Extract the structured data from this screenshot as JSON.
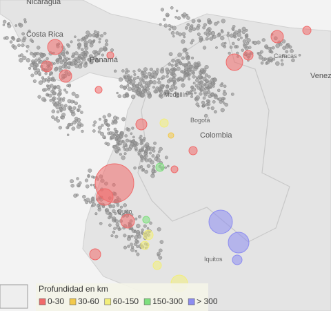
{
  "map": {
    "places": [
      {
        "label": "Nicaragua",
        "kind": "country"
      },
      {
        "label": "Costa Rica",
        "kind": "country"
      },
      {
        "label": "Panamá",
        "kind": "country"
      },
      {
        "label": "Caracas",
        "kind": "city"
      },
      {
        "label": "Venez",
        "kind": "country"
      },
      {
        "label": "Medellín",
        "kind": "city"
      },
      {
        "label": "Bogotá",
        "kind": "city"
      },
      {
        "label": "Colombia",
        "kind": "country"
      },
      {
        "label": "Quito",
        "kind": "city"
      },
      {
        "label": "Iquitos",
        "kind": "city"
      }
    ],
    "legend": {
      "title": "Profundidad en km",
      "items": [
        {
          "label": "0-30",
          "color": "#f06a6a"
        },
        {
          "label": "30-60",
          "color": "#f2c94c"
        },
        {
          "label": "60-150",
          "color": "#f2ee7a"
        },
        {
          "label": "150-300",
          "color": "#7ee07e"
        },
        {
          "label": "> 300",
          "color": "#8c8cf0"
        }
      ]
    }
  }
}
